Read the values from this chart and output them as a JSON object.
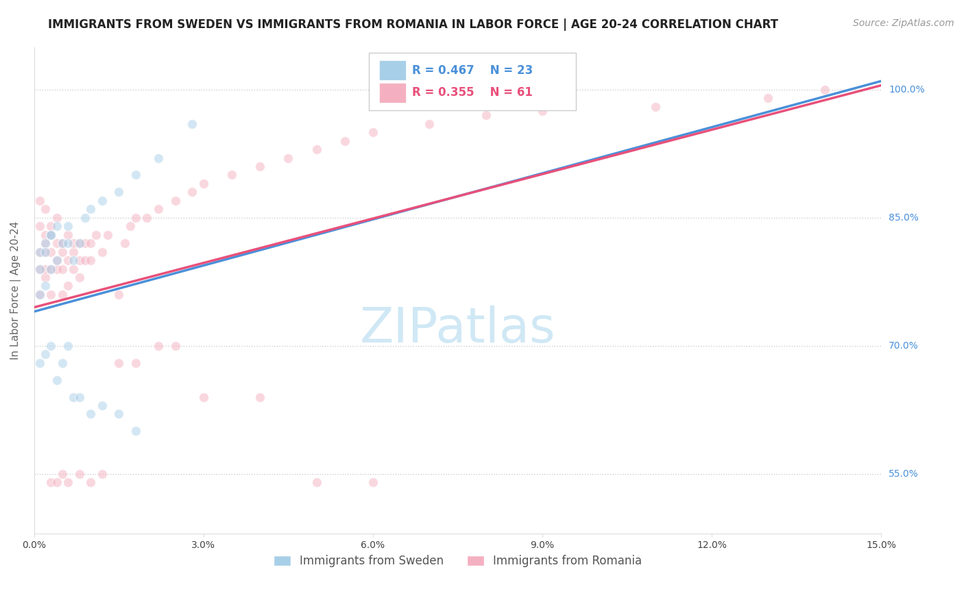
{
  "title": "IMMIGRANTS FROM SWEDEN VS IMMIGRANTS FROM ROMANIA IN LABOR FORCE | AGE 20-24 CORRELATION CHART",
  "source": "Source: ZipAtlas.com",
  "ylabel": "In Labor Force | Age 20-24",
  "legend_label_blue": "Immigrants from Sweden",
  "legend_label_pink": "Immigrants from Romania",
  "R_blue": 0.467,
  "N_blue": 23,
  "R_pink": 0.355,
  "N_pink": 61,
  "xlim": [
    0.0,
    0.15
  ],
  "ylim": [
    0.48,
    1.05
  ],
  "yticks": [
    0.55,
    0.7,
    0.85,
    1.0
  ],
  "ytick_labels": [
    "55.0%",
    "70.0%",
    "85.0%",
    "100.0%"
  ],
  "xticks": [
    0.0,
    0.03,
    0.06,
    0.09,
    0.12,
    0.15
  ],
  "xtick_labels": [
    "0.0%",
    "3.0%",
    "6.0%",
    "9.0%",
    "12.0%",
    "15.0%"
  ],
  "color_blue": "#a8cfe8",
  "color_pink": "#f4b0c0",
  "color_blue_line": "#4a90d9",
  "color_pink_line": "#e8507a",
  "background_color": "#ffffff",
  "watermark": "ZIPatlas",
  "sweden_x": [
    0.001,
    0.001,
    0.001,
    0.002,
    0.002,
    0.002,
    0.003,
    0.003,
    0.003,
    0.004,
    0.004,
    0.005,
    0.006,
    0.006,
    0.007,
    0.008,
    0.009,
    0.01,
    0.012,
    0.015,
    0.018,
    0.022,
    0.028
  ],
  "sweden_y": [
    0.76,
    0.79,
    0.81,
    0.82,
    0.77,
    0.81,
    0.83,
    0.79,
    0.83,
    0.8,
    0.84,
    0.82,
    0.82,
    0.84,
    0.8,
    0.82,
    0.85,
    0.86,
    0.87,
    0.88,
    0.9,
    0.92,
    0.96
  ],
  "romania_x": [
    0.001,
    0.001,
    0.001,
    0.001,
    0.001,
    0.002,
    0.002,
    0.002,
    0.002,
    0.002,
    0.002,
    0.003,
    0.003,
    0.003,
    0.003,
    0.003,
    0.004,
    0.004,
    0.004,
    0.004,
    0.005,
    0.005,
    0.005,
    0.005,
    0.006,
    0.006,
    0.006,
    0.007,
    0.007,
    0.007,
    0.008,
    0.008,
    0.008,
    0.009,
    0.009,
    0.01,
    0.01,
    0.011,
    0.012,
    0.013,
    0.015,
    0.016,
    0.017,
    0.018,
    0.02,
    0.022,
    0.025,
    0.028,
    0.03,
    0.035,
    0.04,
    0.045,
    0.05,
    0.055,
    0.06,
    0.07,
    0.08,
    0.09,
    0.11,
    0.13,
    0.14
  ],
  "romania_y": [
    0.76,
    0.79,
    0.81,
    0.84,
    0.87,
    0.78,
    0.79,
    0.81,
    0.82,
    0.83,
    0.86,
    0.76,
    0.79,
    0.81,
    0.83,
    0.84,
    0.79,
    0.8,
    0.82,
    0.85,
    0.76,
    0.79,
    0.81,
    0.82,
    0.77,
    0.8,
    0.83,
    0.79,
    0.81,
    0.82,
    0.78,
    0.8,
    0.82,
    0.8,
    0.82,
    0.8,
    0.82,
    0.83,
    0.81,
    0.83,
    0.76,
    0.82,
    0.84,
    0.85,
    0.85,
    0.86,
    0.87,
    0.88,
    0.89,
    0.9,
    0.91,
    0.92,
    0.93,
    0.94,
    0.95,
    0.96,
    0.97,
    0.975,
    0.98,
    0.99,
    1.0
  ],
  "romania_low_x": [
    0.003,
    0.004,
    0.005,
    0.006,
    0.008,
    0.01,
    0.012,
    0.015,
    0.018,
    0.022,
    0.025,
    0.03,
    0.04,
    0.05,
    0.06
  ],
  "romania_low_y": [
    0.54,
    0.54,
    0.55,
    0.54,
    0.55,
    0.54,
    0.55,
    0.68,
    0.68,
    0.7,
    0.7,
    0.64,
    0.64,
    0.54,
    0.54
  ],
  "sweden_low_x": [
    0.001,
    0.002,
    0.003,
    0.004,
    0.005,
    0.006,
    0.007,
    0.008,
    0.01,
    0.012,
    0.015,
    0.018
  ],
  "sweden_low_y": [
    0.68,
    0.69,
    0.7,
    0.66,
    0.68,
    0.7,
    0.64,
    0.64,
    0.62,
    0.63,
    0.62,
    0.6
  ],
  "title_fontsize": 12,
  "source_fontsize": 10,
  "axis_label_fontsize": 11,
  "tick_fontsize": 10,
  "legend_fontsize": 12,
  "watermark_fontsize": 52,
  "watermark_color": "#d0e8f5",
  "scatter_size": 100,
  "scatter_alpha": 0.5,
  "scatter_edgecolor": "white",
  "scatter_linewidth": 1.0
}
